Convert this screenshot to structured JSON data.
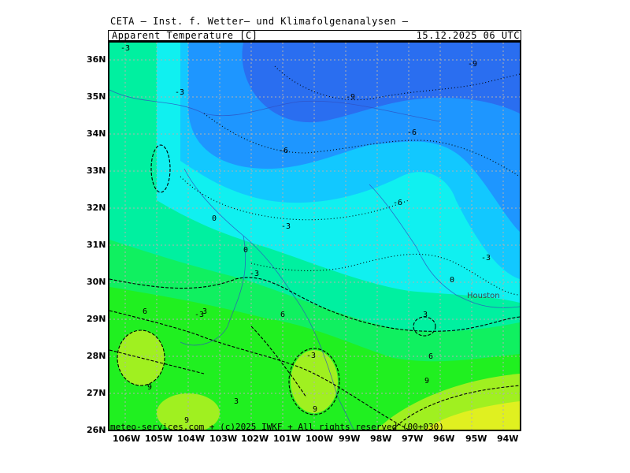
{
  "header": {
    "source": "CETA — Inst. f. Wetter— und Klimafolgenanalysen —",
    "variable": "Apparent_Temperature [C]",
    "valid_time": "15.12.2025 06 UTC"
  },
  "axes": {
    "lat_labels": [
      "36N",
      "35N",
      "34N",
      "33N",
      "32N",
      "31N",
      "30N",
      "29N",
      "28N",
      "27N",
      "26N"
    ],
    "lon_labels": [
      "106W",
      "105W",
      "104W",
      "103W",
      "102W",
      "101W",
      "100W",
      "99W",
      "98W",
      "97W",
      "96W",
      "95W",
      "94W"
    ]
  },
  "city": "Houston",
  "contour_labels": [
    "-3",
    "-3",
    "-3",
    "-6",
    "-6",
    "-9",
    "-9",
    "-6",
    "-3",
    "-3",
    "-3",
    "0",
    "0",
    "0",
    "-3",
    "3",
    "6",
    "6",
    "3",
    "6",
    "9",
    "9",
    "9",
    "9",
    "3"
  ],
  "copyright": "meteo-services.com + (c)2025 IWKF + All rights reserved (00+030)",
  "colors": {
    "frame": "#000000",
    "grid": "#b0b0b0",
    "level_m9": "#2a6ef0",
    "level_m6": "#1e96ff",
    "level_m3": "#12c8ff",
    "level_0": "#10f0f0",
    "level_3": "#00f0a0",
    "level_6": "#10f060",
    "level_9": "#20f020",
    "level_12": "#a0f020",
    "level_15": "#e0f020"
  }
}
